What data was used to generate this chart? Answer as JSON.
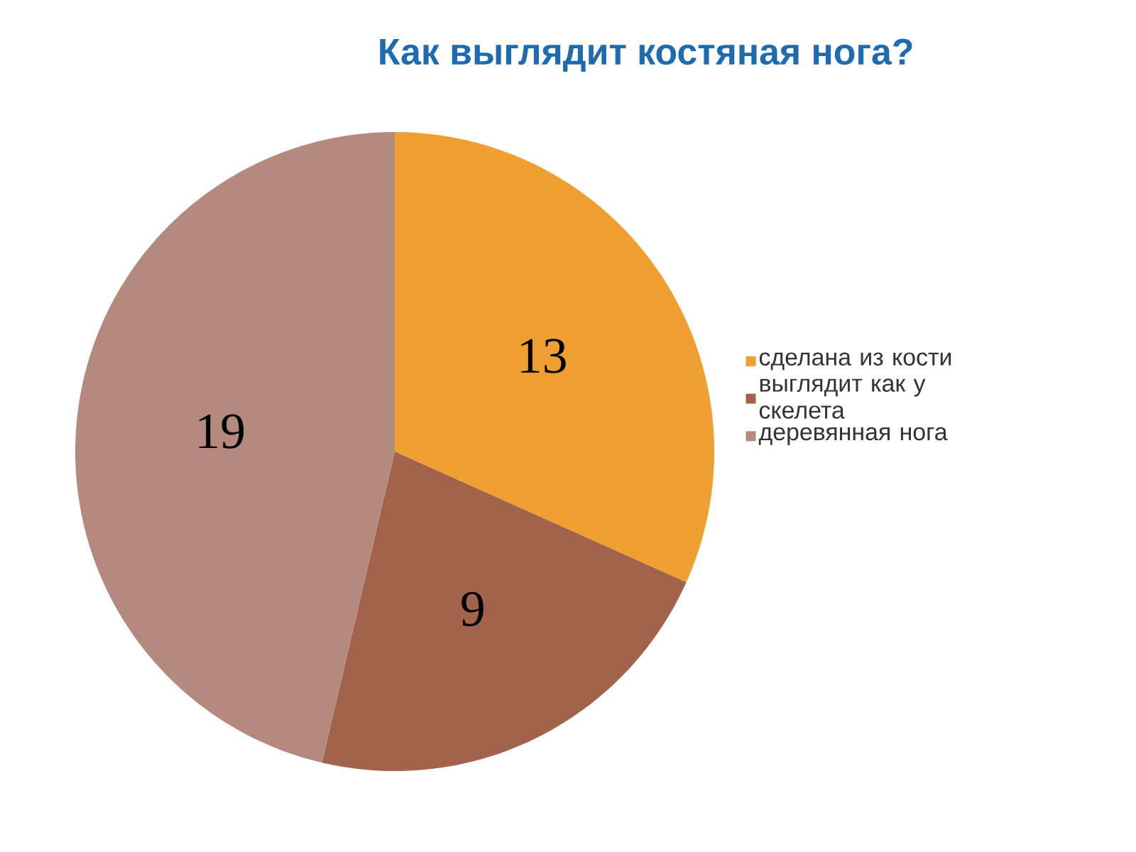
{
  "chart_data": {
    "type": "pie",
    "title": "Как выглядит костяная нога?",
    "categories": [
      "сделана из кости",
      "выглядит как у скелета",
      "деревянная нога"
    ],
    "values": [
      13,
      9,
      19
    ],
    "colors": [
      "#f0a030",
      "#a2624c",
      "#b48a7e"
    ],
    "data_labels": true,
    "legend": "right"
  }
}
